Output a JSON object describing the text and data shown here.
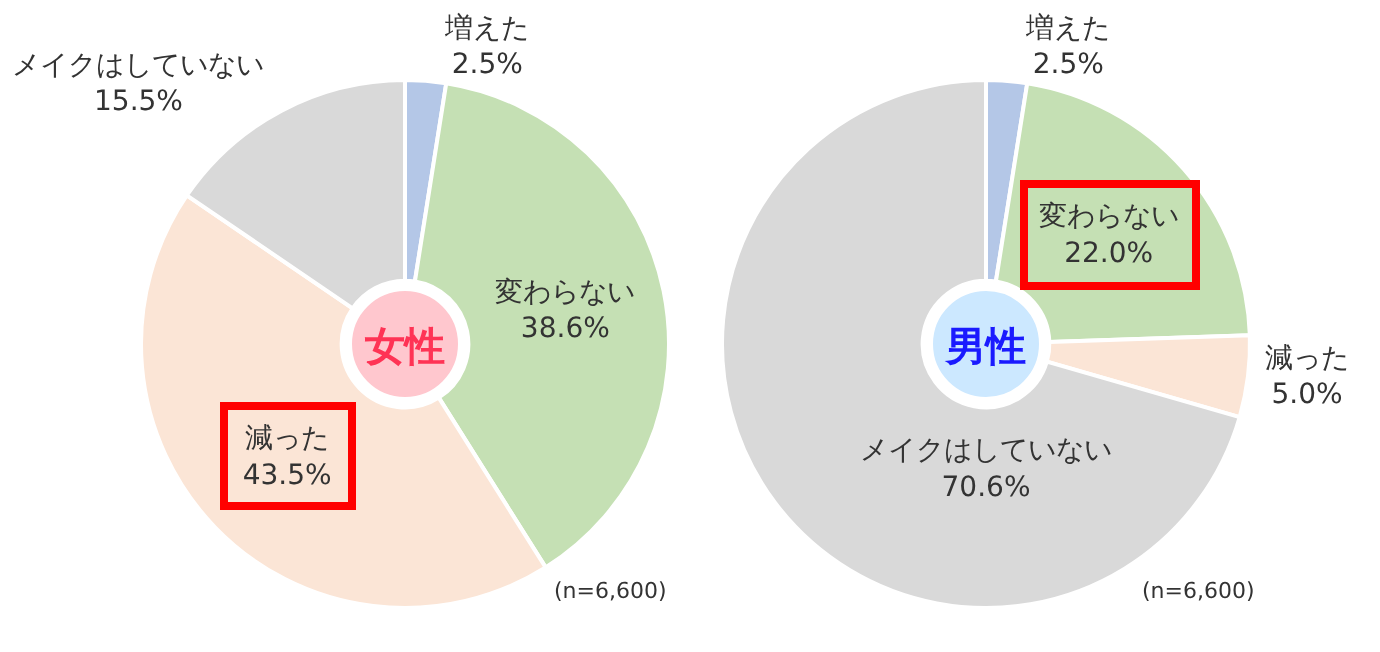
{
  "chart_data": [
    {
      "type": "donut",
      "title": "女性",
      "categories": [
        "増えた",
        "変わらない",
        "減った",
        "メイクはしていない"
      ],
      "values": [
        2.5,
        38.6,
        43.5,
        15.5
      ],
      "colors": [
        "#b4c7e7",
        "#c5e0b4",
        "#fbe5d6",
        "#d9d9d9"
      ],
      "value_labels": [
        "2.5%",
        "38.6%",
        "43.5%",
        "15.5%"
      ],
      "annotations": [
        "(n=6,600)"
      ]
    },
    {
      "type": "donut",
      "title": "男性",
      "categories": [
        "増えた",
        "変わらない",
        "減った",
        "メイクはしていない"
      ],
      "values": [
        2.5,
        22.0,
        5.0,
        70.6
      ],
      "colors": [
        "#b4c7e7",
        "#c5e0b4",
        "#fbe5d6",
        "#d9d9d9"
      ],
      "value_labels": [
        "2.5%",
        "22.0%",
        "5.0%",
        "70.6%"
      ],
      "annotations": [
        "(n=6,600)"
      ]
    }
  ]
}
